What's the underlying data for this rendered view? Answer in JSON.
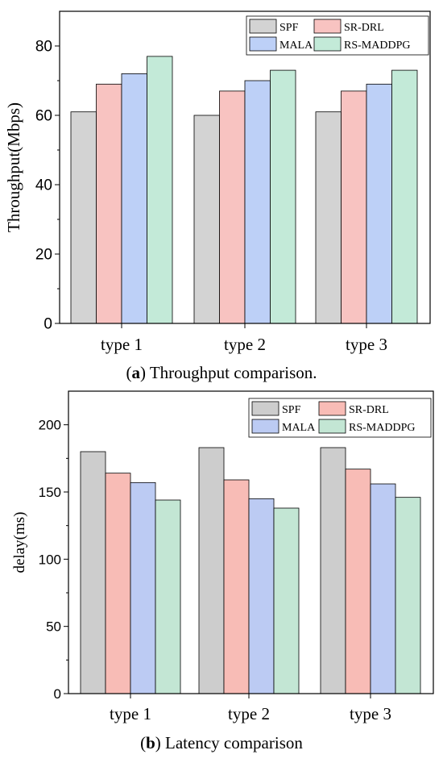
{
  "chart_data": [
    {
      "type": "bar",
      "categories": [
        "type 1",
        "type 2",
        "type 3"
      ],
      "ylabel": "Throughput(Mbps)",
      "xlabel": "",
      "ylim": [
        0,
        90
      ],
      "yticks": [
        0,
        20,
        40,
        60,
        80
      ],
      "legend_position": "top-right",
      "series": [
        {
          "name": "SPF",
          "color": "#d3d3d3",
          "values": [
            61,
            60,
            61
          ]
        },
        {
          "name": "SR-DRL",
          "color": "#f8c3c1",
          "values": [
            69,
            67,
            67
          ]
        },
        {
          "name": "MALA",
          "color": "#bdd0f7",
          "values": [
            72,
            70,
            69
          ]
        },
        {
          "name": "RS-MADDPG",
          "color": "#c3ead8",
          "values": [
            77,
            73,
            73
          ]
        }
      ],
      "caption_label": "a",
      "caption_text": "Throughput comparison."
    },
    {
      "type": "bar",
      "categories": [
        "type 1",
        "type 2",
        "type 3"
      ],
      "ylabel": "delay(ms)",
      "xlabel": "",
      "ylim": [
        0,
        225
      ],
      "yticks": [
        0,
        50,
        100,
        150,
        200
      ],
      "legend_position": "top-right",
      "series": [
        {
          "name": "SPF",
          "color": "#cdcdcd",
          "values": [
            180,
            183,
            183
          ]
        },
        {
          "name": "SR-DRL",
          "color": "#f8bcb6",
          "values": [
            164,
            159,
            167
          ]
        },
        {
          "name": "MALA",
          "color": "#bccbf3",
          "values": [
            157,
            145,
            156
          ]
        },
        {
          "name": "RS-MADDPG",
          "color": "#c3e6d4",
          "values": [
            144,
            138,
            146
          ]
        }
      ],
      "caption_label": "b",
      "caption_text": "Latency comparison"
    }
  ]
}
